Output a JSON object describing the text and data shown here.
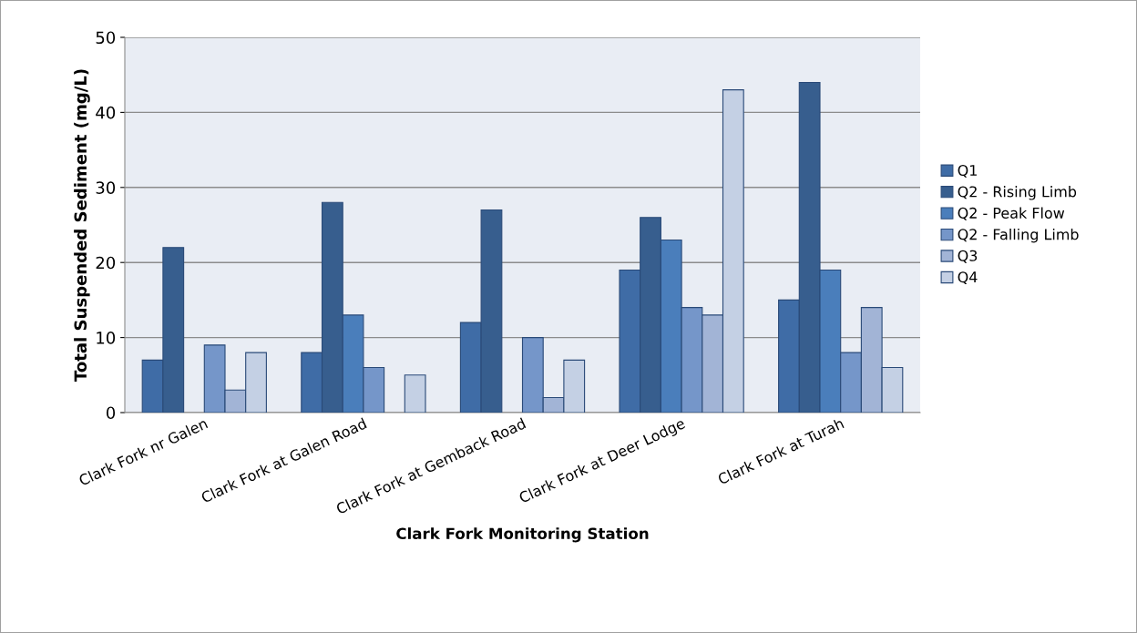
{
  "chart_data": {
    "type": "bar",
    "xlabel": "Clark Fork Monitoring Station",
    "ylabel": "Total Suspended Sediment (mg/L)",
    "categories": [
      "Clark Fork nr Galen",
      "Clark Fork at Galen Road",
      "Clark Fork at Gemback Road",
      "Clark Fork at Deer Lodge",
      "Clark Fork at Turah"
    ],
    "series": [
      {
        "name": "Q1",
        "color": "#3f6ca6",
        "values": [
          7,
          8,
          12,
          19,
          15
        ]
      },
      {
        "name": "Q2 - Rising Limb",
        "color": "#375e8e",
        "values": [
          22,
          28,
          27,
          26,
          44
        ]
      },
      {
        "name": "Q2 - Peak Flow",
        "color": "#4a7ebb",
        "values": [
          null,
          13,
          null,
          23,
          19
        ]
      },
      {
        "name": "Q2 - Falling Limb",
        "color": "#7596c9",
        "values": [
          9,
          6,
          10,
          14,
          8
        ]
      },
      {
        "name": "Q3",
        "color": "#a2b4d6",
        "values": [
          3,
          null,
          2,
          13,
          14
        ]
      },
      {
        "name": "Q4",
        "color": "#c4d0e4",
        "values": [
          8,
          5,
          7,
          43,
          6
        ]
      }
    ],
    "ylim": [
      0,
      50
    ],
    "yticks": [
      0,
      10,
      20,
      30,
      40,
      50
    ],
    "grid": "y",
    "legend": "right"
  }
}
